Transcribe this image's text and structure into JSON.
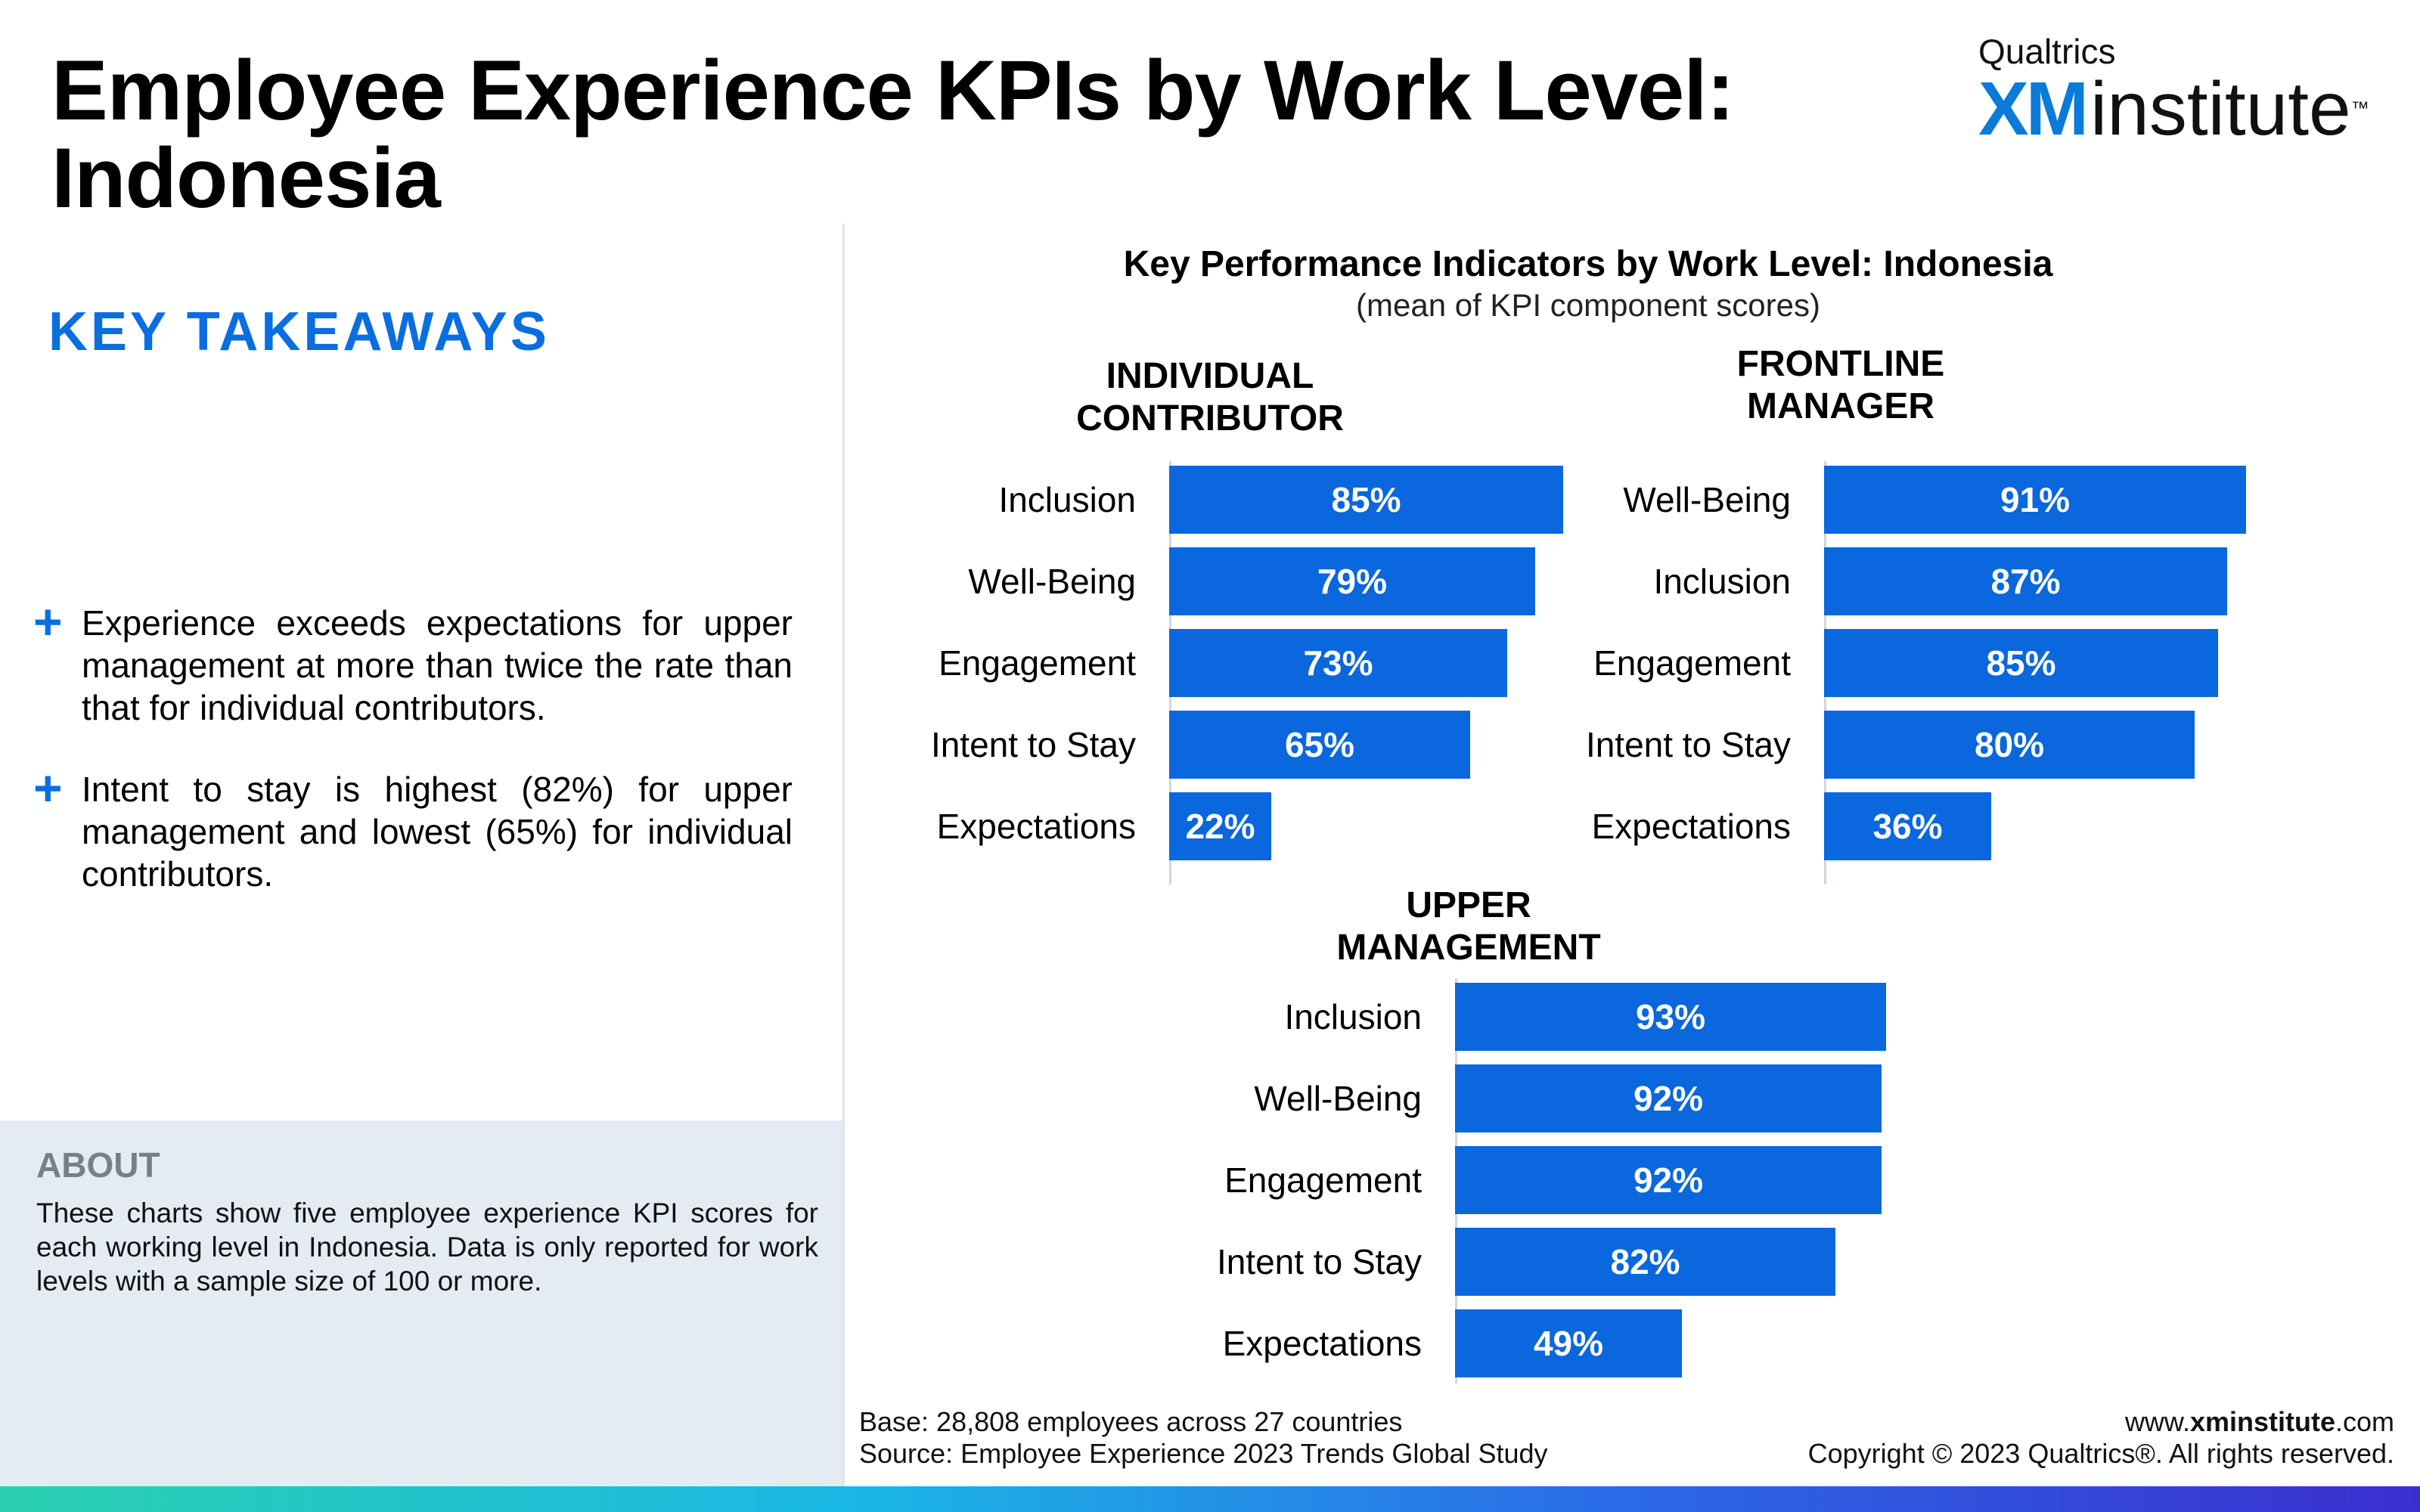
{
  "page": {
    "title": "Employee Experience KPIs by Work Level: Indonesia"
  },
  "logo": {
    "brand": "Qualtrics",
    "xm": "XM",
    "institute": "institute",
    "tm": "™"
  },
  "takeaways": {
    "heading": "KEY TAKEAWAYS",
    "items": [
      "Experience exceeds expectations for upper management at more than twice the rate than that for individual contributors.",
      "Intent to stay is highest (82%) for upper management and lowest (65%) for individual contributors."
    ]
  },
  "about": {
    "heading": "ABOUT",
    "text": "These charts show five employee experience KPI scores for each working level in Indonesia. Data is only reported for work levels with a sample size of 100 or more."
  },
  "chart_data": {
    "type": "bar",
    "orientation": "horizontal",
    "title": "Key Performance Indicators by Work Level: Indonesia",
    "subtitle": "(mean of KPI component scores)",
    "color": "#0a67dd",
    "xlim": [
      0,
      100
    ],
    "panels": [
      {
        "name": "INDIVIDUAL CONTRIBUTOR",
        "categories": [
          "Inclusion",
          "Well-Being",
          "Engagement",
          "Intent to Stay",
          "Expectations"
        ],
        "values": [
          85,
          79,
          73,
          65,
          22
        ],
        "labels": [
          "85%",
          "79%",
          "73%",
          "65%",
          "22%"
        ]
      },
      {
        "name": "FRONTLINE MANAGER",
        "categories": [
          "Well-Being",
          "Inclusion",
          "Engagement",
          "Intent to Stay",
          "Expectations"
        ],
        "values": [
          91,
          87,
          85,
          80,
          36
        ],
        "labels": [
          "91%",
          "87%",
          "85%",
          "80%",
          "36%"
        ]
      },
      {
        "name": "UPPER MANAGEMENT",
        "categories": [
          "Inclusion",
          "Well-Being",
          "Engagement",
          "Intent to Stay",
          "Expectations"
        ],
        "values": [
          93,
          92,
          92,
          82,
          49
        ],
        "labels": [
          "93%",
          "92%",
          "92%",
          "82%",
          "49%"
        ]
      }
    ]
  },
  "footer": {
    "base": "Base: 28,808 employees across 27 countries",
    "source": "Source: Employee Experience 2023 Trends Global Study",
    "url_prefix": "www.",
    "url_bold": "xminstitute",
    "url_suffix": ".com",
    "copyright": "Copyright © 2023 Qualtrics®. All rights reserved."
  }
}
